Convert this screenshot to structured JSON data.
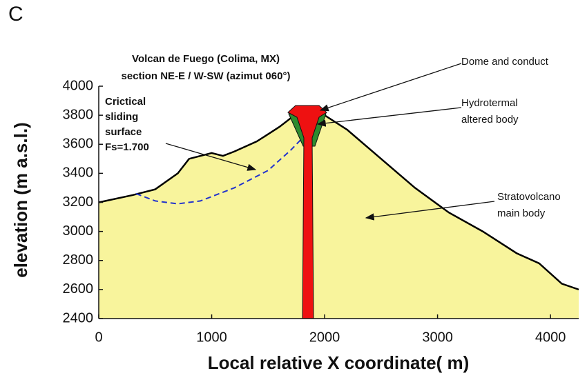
{
  "chart_data": {
    "type": "area",
    "panel_label": "C",
    "title": "Volcan de Fuego (Colima, MX)",
    "subtitle": "section NE-E / W-SW  (azimut 060°)",
    "x_label": "Local relative X coordinate( m)",
    "y_label": "elevation (m a.s.l.)",
    "xlim": [
      0,
      4250
    ],
    "ylim": [
      2400,
      4000
    ],
    "xticks": [
      0,
      1000,
      2000,
      3000,
      4000
    ],
    "yticks": [
      2400,
      2600,
      2800,
      3000,
      3200,
      3400,
      3600,
      3800,
      4000
    ],
    "series": [
      {
        "x": [
          0,
          300,
          500,
          700,
          800,
          1000,
          1100,
          1200,
          1400,
          1600,
          1700,
          1750,
          1820,
          1950,
          2000,
          2200,
          2500,
          2800,
          3100,
          3400,
          3700,
          3900,
          4100,
          4250
        ],
        "values": [
          3200,
          3250,
          3290,
          3400,
          3500,
          3540,
          3520,
          3550,
          3620,
          3720,
          3780,
          3820,
          3860,
          3860,
          3800,
          3700,
          3500,
          3300,
          3130,
          3000,
          2850,
          2780,
          2640,
          2600
        ],
        "color": "#000000",
        "fill": "#f8f49c"
      },
      {
        "x": [
          330,
          500,
          700,
          900,
          1200,
          1500,
          1700,
          1850,
          1950
        ],
        "values": [
          3260,
          3210,
          3190,
          3210,
          3300,
          3420,
          3560,
          3680,
          3750
        ],
        "color": "#2233cc",
        "dash": true
      }
    ],
    "annotations": [
      {
        "lines": [
          "Crictical",
          "sliding",
          "surface",
          "Fs=1.700"
        ]
      },
      {
        "lines": [
          "Dome and conduct"
        ]
      },
      {
        "lines": [
          "Hydrotermal",
          "altered body"
        ]
      },
      {
        "lines": [
          "Stratovolcano",
          "main body"
        ]
      }
    ]
  }
}
